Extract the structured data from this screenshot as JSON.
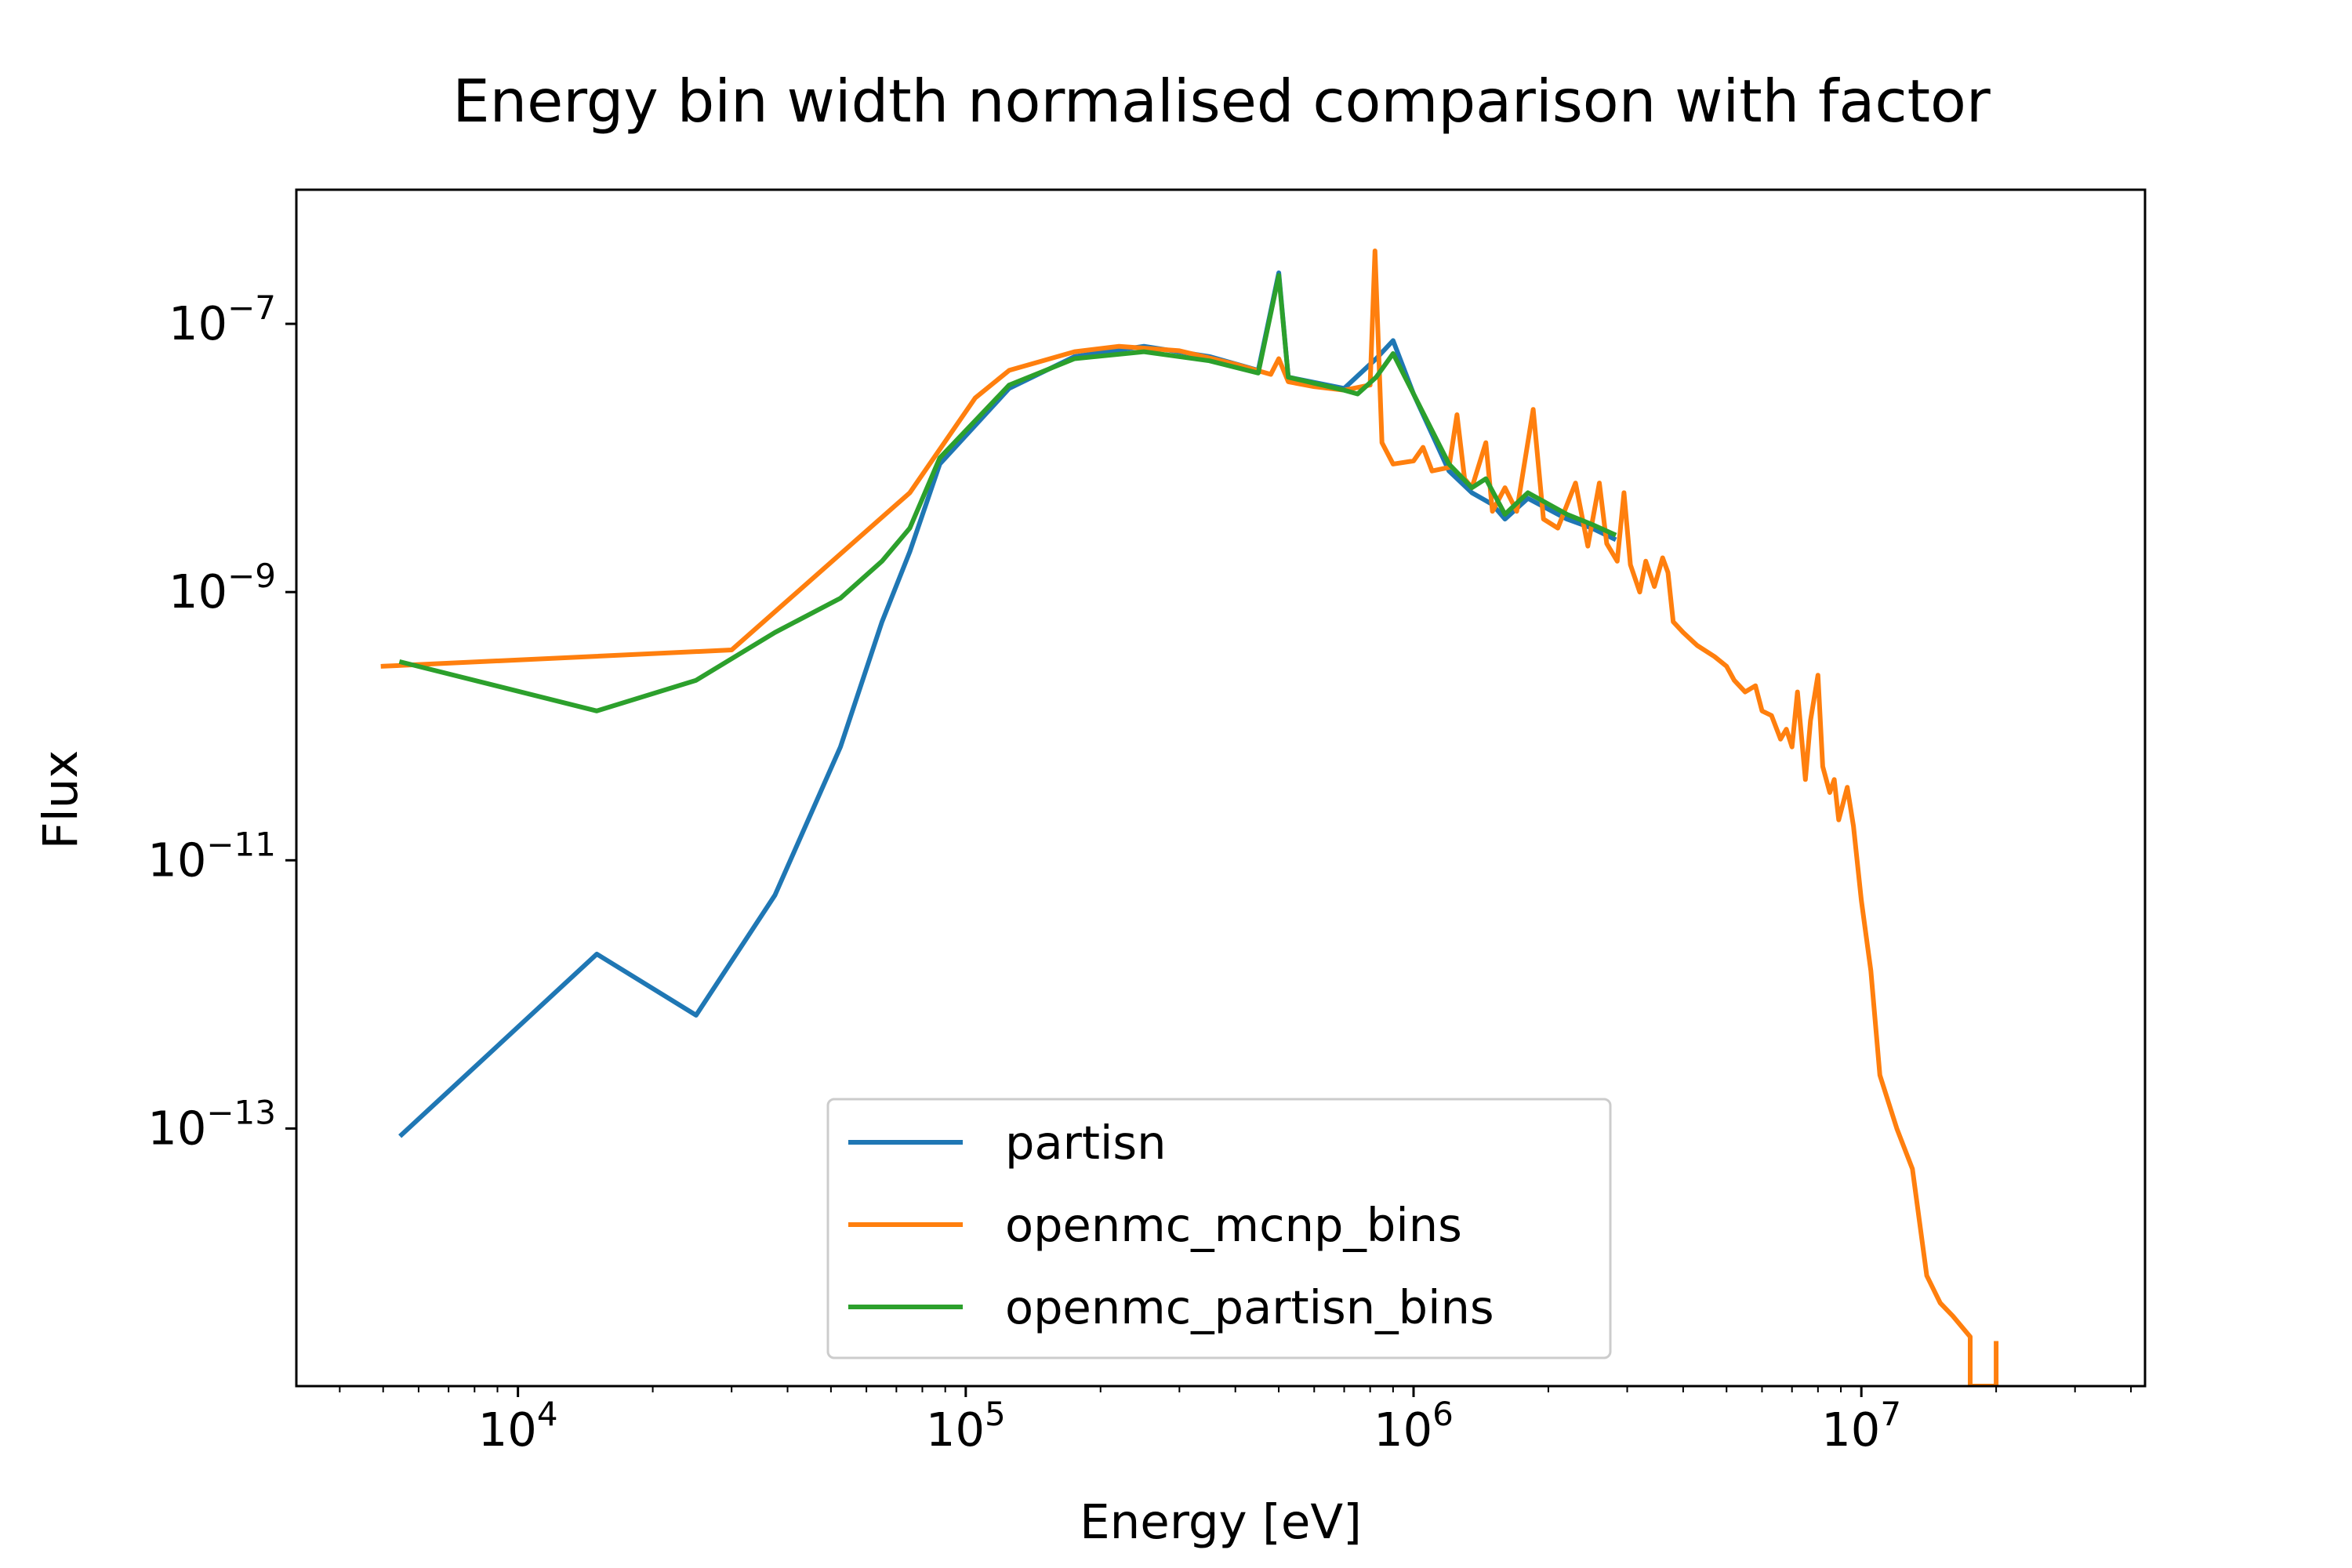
{
  "chart_data": {
    "type": "line",
    "title": "Energy bin width normalised comparison with factor",
    "xlabel": "Energy [eV]",
    "ylabel": "Flux",
    "xscale": "log",
    "yscale": "log",
    "xlim": [
      3200,
      43000000
    ],
    "ylim": [
      1.2e-15,
      1e-06
    ],
    "x_ticks": [
      {
        "value": 10000,
        "base": "10",
        "exp": "4"
      },
      {
        "value": 100000,
        "base": "10",
        "exp": "5"
      },
      {
        "value": 1000000,
        "base": "10",
        "exp": "6"
      },
      {
        "value": 10000000,
        "base": "10",
        "exp": "7"
      }
    ],
    "y_ticks": [
      {
        "value": 1e-13,
        "base": "10",
        "exp": "−13"
      },
      {
        "value": 1e-11,
        "base": "10",
        "exp": "−11"
      },
      {
        "value": 1e-09,
        "base": "10",
        "exp": "−9"
      },
      {
        "value": 1e-07,
        "base": "10",
        "exp": "−7"
      }
    ],
    "legend_position": "lower-center",
    "grid": false,
    "series": [
      {
        "name": "partisn",
        "color": "#1f77b4",
        "points": [
          [
            5500,
            9e-14
          ],
          [
            15000,
            2e-12
          ],
          [
            25000,
            7e-13
          ],
          [
            37500,
            5.5e-12
          ],
          [
            52500,
            7e-11
          ],
          [
            65000,
            6e-10
          ],
          [
            75000,
            2e-09
          ],
          [
            87500,
            9e-09
          ],
          [
            125000,
            3.3e-08
          ],
          [
            175000,
            5.7e-08
          ],
          [
            250000,
            6.8e-08
          ],
          [
            350000,
            5.7e-08
          ],
          [
            450000,
            4.5e-08
          ],
          [
            500000,
            2.4e-07
          ],
          [
            525000,
            4e-08
          ],
          [
            700000,
            3.3e-08
          ],
          [
            825000,
            5.5e-08
          ],
          [
            900000,
            7.5e-08
          ],
          [
            1000000,
            3e-08
          ],
          [
            1200000,
            8e-09
          ],
          [
            1350000,
            5.5e-09
          ],
          [
            1500000,
            4.5e-09
          ],
          [
            1600000,
            3.5e-09
          ],
          [
            1800000,
            5e-09
          ],
          [
            2200000,
            3.5e-09
          ],
          [
            2500000,
            3e-09
          ],
          [
            2800000,
            2.5e-09
          ]
        ]
      },
      {
        "name": "openmc_mcnp_bins",
        "color": "#ff7f0e",
        "points": [
          [
            5000,
            2.8e-10
          ],
          [
            30000,
            3.7e-10
          ],
          [
            75000,
            5.5e-09
          ],
          [
            105000,
            2.8e-08
          ],
          [
            125000,
            4.5e-08
          ],
          [
            175000,
            6.2e-08
          ],
          [
            220000,
            6.8e-08
          ],
          [
            300000,
            6.3e-08
          ],
          [
            400000,
            5e-08
          ],
          [
            480000,
            4.2e-08
          ],
          [
            500000,
            5.5e-08
          ],
          [
            525000,
            3.7e-08
          ],
          [
            600000,
            3.4e-08
          ],
          [
            700000,
            3.2e-08
          ],
          [
            800000,
            3.5e-08
          ],
          [
            820000,
            3.5e-07
          ],
          [
            850000,
            1.3e-08
          ],
          [
            900000,
            9e-09
          ],
          [
            1000000,
            9.5e-09
          ],
          [
            1050000,
            1.2e-08
          ],
          [
            1100000,
            8e-09
          ],
          [
            1200000,
            8.5e-09
          ],
          [
            1250000,
            2.1e-08
          ],
          [
            1300000,
            7e-09
          ],
          [
            1350000,
            6e-09
          ],
          [
            1450000,
            1.3e-08
          ],
          [
            1500000,
            4e-09
          ],
          [
            1600000,
            6e-09
          ],
          [
            1700000,
            4e-09
          ],
          [
            1850000,
            2.3e-08
          ],
          [
            1950000,
            3.5e-09
          ],
          [
            2100000,
            3e-09
          ],
          [
            2300000,
            6.5e-09
          ],
          [
            2450000,
            2.2e-09
          ],
          [
            2600000,
            6.5e-09
          ],
          [
            2700000,
            2.3e-09
          ],
          [
            2850000,
            1.7e-09
          ],
          [
            2950000,
            5.5e-09
          ],
          [
            3050000,
            1.6e-09
          ],
          [
            3200000,
            1e-09
          ],
          [
            3300000,
            1.7e-09
          ],
          [
            3450000,
            1.1e-09
          ],
          [
            3600000,
            1.8e-09
          ],
          [
            3700000,
            1.4e-09
          ],
          [
            3800000,
            6e-10
          ],
          [
            4000000,
            5e-10
          ],
          [
            4300000,
            4e-10
          ],
          [
            4700000,
            3.3e-10
          ],
          [
            5000000,
            2.8e-10
          ],
          [
            5200000,
            2.2e-10
          ],
          [
            5500000,
            1.8e-10
          ],
          [
            5800000,
            2e-10
          ],
          [
            6000000,
            1.3e-10
          ],
          [
            6300000,
            1.2e-10
          ],
          [
            6600000,
            8e-11
          ],
          [
            6800000,
            9.5e-11
          ],
          [
            7000000,
            7e-11
          ],
          [
            7200000,
            1.8e-10
          ],
          [
            7500000,
            4e-11
          ],
          [
            7700000,
            1.1e-10
          ],
          [
            8000000,
            2.4e-10
          ],
          [
            8200000,
            5e-11
          ],
          [
            8500000,
            3.2e-11
          ],
          [
            8700000,
            4e-11
          ],
          [
            8900000,
            2e-11
          ],
          [
            9300000,
            3.5e-11
          ],
          [
            9600000,
            1.8e-11
          ],
          [
            10000000,
            5e-12
          ],
          [
            10500000,
            1.5e-12
          ],
          [
            11000000,
            2.5e-13
          ],
          [
            12000000,
            1e-13
          ],
          [
            13000000,
            5e-14
          ],
          [
            14000000,
            8e-15
          ],
          [
            15000000,
            5e-15
          ],
          [
            16000000,
            4e-15
          ],
          [
            17500000,
            2.8e-15
          ],
          [
            17500000,
            1.2e-15
          ],
          [
            20000000,
            1.2e-15
          ],
          [
            20000000,
            2.5e-15
          ]
        ]
      },
      {
        "name": "openmc_partisn_bins",
        "color": "#2ca02c",
        "points": [
          [
            5500,
            3e-10
          ],
          [
            15000,
            1.3e-10
          ],
          [
            25000,
            2.2e-10
          ],
          [
            37500,
            5e-10
          ],
          [
            52500,
            9e-10
          ],
          [
            65000,
            1.7e-09
          ],
          [
            75000,
            3e-09
          ],
          [
            87500,
            1e-08
          ],
          [
            125000,
            3.5e-08
          ],
          [
            175000,
            5.5e-08
          ],
          [
            250000,
            6.2e-08
          ],
          [
            350000,
            5.3e-08
          ],
          [
            450000,
            4.3e-08
          ],
          [
            500000,
            2.3e-07
          ],
          [
            525000,
            4e-08
          ],
          [
            700000,
            3.2e-08
          ],
          [
            750000,
            3e-08
          ],
          [
            825000,
            4e-08
          ],
          [
            900000,
            6e-08
          ],
          [
            1000000,
            3e-08
          ],
          [
            1200000,
            9e-09
          ],
          [
            1350000,
            6e-09
          ],
          [
            1450000,
            7e-09
          ],
          [
            1600000,
            3.8e-09
          ],
          [
            1800000,
            5.5e-09
          ],
          [
            2200000,
            3.8e-09
          ],
          [
            2500000,
            3.2e-09
          ],
          [
            2800000,
            2.7e-09
          ]
        ]
      }
    ]
  }
}
